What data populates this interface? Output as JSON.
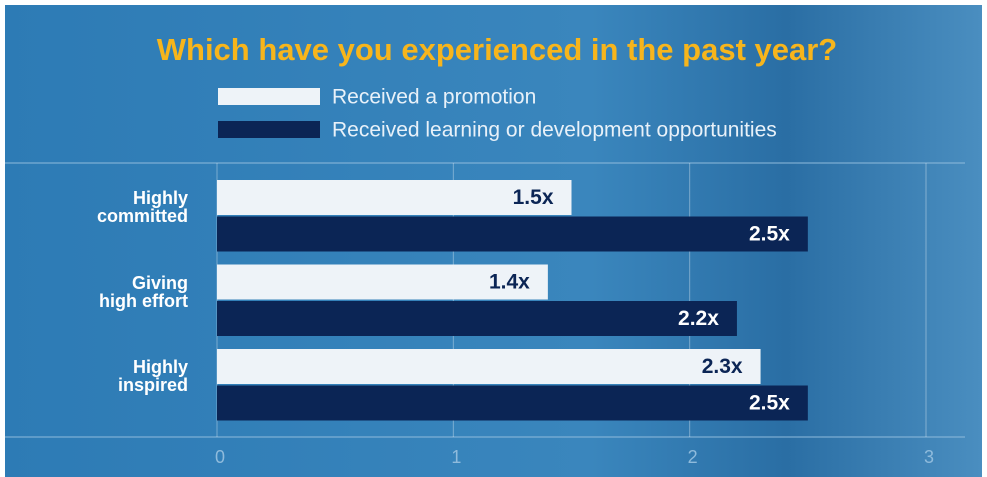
{
  "chart_data": {
    "type": "barh",
    "title": "Which have you experienced in the past year?",
    "categories": [
      "Highly\ncommitted",
      "Giving\nhigh effort",
      "Highly\ninspired"
    ],
    "series": [
      {
        "name": "Received a promotion",
        "color": "#eef3f8",
        "label_color": "#0b2555",
        "values": [
          1.5,
          1.4,
          2.3
        ],
        "value_labels": [
          "1.5x",
          "1.4x",
          "2.3x"
        ]
      },
      {
        "name": "Received learning or development opportunities",
        "color": "#0b2555",
        "label_color": "#ffffff",
        "values": [
          2.5,
          2.2,
          2.5
        ],
        "value_labels": [
          "2.5x",
          "2.2x",
          "2.5x"
        ]
      }
    ],
    "xlim": [
      0,
      3
    ],
    "xticks": [
      0,
      1,
      2,
      3
    ],
    "grid": true
  }
}
